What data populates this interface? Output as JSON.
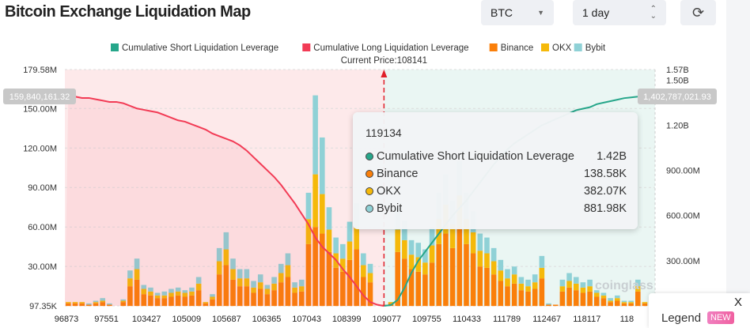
{
  "header": {
    "title": "Bitcoin Exchange Liquidation Map",
    "coin_select": "BTC",
    "range_select": "1 day",
    "refresh_icon": "refresh-icon"
  },
  "colors": {
    "short": "#26a68a",
    "long": "#f23b55",
    "binance": "#fa7f0a",
    "okx": "#f5b90a",
    "bybit": "#8fd1d6"
  },
  "chart_data": {
    "type": "bar",
    "legend": [
      "Cumulative Short Liquidation Leverage",
      "Cumulative Long Liquidation Leverage",
      "Binance",
      "OKX",
      "Bybit"
    ],
    "legend_placement": "top",
    "current_price_label": "Current Price:108141",
    "left_axis": {
      "ticks": [
        "179.58M",
        "150.00M",
        "120.00M",
        "90.00M",
        "60.00M",
        "30.00M",
        "97.35K"
      ],
      "ylim_m": [
        0.09735,
        179.58
      ]
    },
    "right_axis": {
      "ticks": [
        "1.57B",
        "1.50B",
        "1.20B",
        "900.00M",
        "600.00M",
        "300.00M"
      ],
      "ylim_m": [
        0,
        1570
      ]
    },
    "left_marker": "159,840,161.32",
    "right_marker": "1,402,787,021.93",
    "x_ticks": [
      "96873",
      "97551",
      "103427",
      "105009",
      "105687",
      "106365",
      "107043",
      "108399",
      "109077",
      "109755",
      "110433",
      "111789",
      "112467",
      "118117",
      "118"
    ],
    "binance_m": [
      2,
      2,
      2,
      1,
      2,
      3,
      1,
      0,
      3,
      15,
      20,
      9,
      8,
      6,
      6,
      7,
      8,
      7,
      8,
      12,
      2,
      5,
      24,
      31,
      20,
      15,
      15,
      10,
      13,
      9,
      12,
      18,
      22,
      10,
      11,
      47,
      60,
      55,
      41,
      29,
      26,
      35,
      43,
      22,
      18,
      0,
      1,
      2,
      41,
      36,
      28,
      26,
      24,
      33,
      47,
      55,
      44,
      60,
      47,
      40,
      30,
      29,
      24,
      19,
      15,
      17,
      12,
      11,
      13,
      21,
      1,
      1,
      11,
      14,
      12,
      10,
      11,
      7,
      6,
      3,
      4,
      2,
      2,
      11,
      2,
      2
    ],
    "okx_m": [
      1,
      1,
      1,
      0,
      1,
      1,
      0,
      0,
      1,
      6,
      8,
      4,
      3,
      2,
      2,
      3,
      3,
      3,
      3,
      5,
      1,
      2,
      10,
      12,
      8,
      6,
      6,
      4,
      5,
      4,
      5,
      7,
      9,
      4,
      4,
      19,
      40,
      30,
      17,
      11,
      10,
      14,
      17,
      9,
      7,
      0,
      0,
      1,
      17,
      14,
      11,
      11,
      9,
      13,
      19,
      22,
      18,
      24,
      19,
      16,
      12,
      11,
      10,
      8,
      6,
      7,
      5,
      4,
      5,
      8,
      0,
      0,
      4,
      5,
      5,
      4,
      4,
      3,
      2,
      1,
      2,
      1,
      1,
      4,
      1,
      1
    ],
    "bybit_m": [
      0,
      0,
      0,
      1,
      1,
      2,
      1,
      0,
      1,
      6,
      8,
      3,
      3,
      2,
      3,
      3,
      3,
      2,
      3,
      5,
      0,
      2,
      10,
      13,
      8,
      7,
      7,
      5,
      6,
      3,
      5,
      7,
      9,
      4,
      5,
      20,
      60,
      43,
      17,
      12,
      11,
      15,
      18,
      9,
      7,
      0,
      0,
      0,
      17,
      15,
      11,
      11,
      10,
      14,
      20,
      23,
      18,
      26,
      20,
      16,
      13,
      12,
      10,
      8,
      7,
      6,
      5,
      5,
      6,
      9,
      1,
      0,
      5,
      6,
      5,
      4,
      5,
      2,
      2,
      2,
      2,
      1,
      1,
      5,
      0,
      0
    ],
    "long_cumulative_m": [
      160,
      159,
      158,
      158,
      157,
      156,
      155,
      155,
      154,
      152,
      150,
      149,
      148,
      147,
      145,
      143,
      141,
      140,
      138,
      136,
      134,
      131,
      129,
      127,
      125,
      122,
      118,
      113,
      108,
      103,
      98,
      92,
      85,
      78,
      70,
      62,
      52,
      45,
      40,
      35,
      28,
      22,
      15,
      8,
      3,
      1,
      0
    ],
    "short_cumulative_m": [
      null,
      null,
      null,
      null,
      null,
      null,
      null,
      null,
      null,
      null,
      null,
      null,
      null,
      null,
      null,
      null,
      null,
      null,
      null,
      null,
      null,
      null,
      null,
      null,
      null,
      null,
      null,
      null,
      null,
      null,
      null,
      null,
      null,
      null,
      null,
      null,
      null,
      null,
      null,
      null,
      null,
      null,
      null,
      null,
      null,
      null,
      0,
      5,
      40,
      120,
      220,
      300,
      360,
      420,
      480,
      540,
      600,
      650,
      700,
      760,
      820,
      880,
      940,
      990,
      1040,
      1080,
      1110,
      1140,
      1170,
      1200,
      1220,
      1240,
      1260,
      1280,
      1300,
      1310,
      1320,
      1340,
      1350,
      1360,
      1370,
      1380,
      1385,
      1390,
      1398,
      1403
    ],
    "current_price_index": 46
  },
  "tooltip": {
    "price": "119134",
    "rows": [
      {
        "label": "Cumulative Short Liquidation Leverage",
        "value": "1.42B",
        "color": "#26a68a"
      },
      {
        "label": "Binance",
        "value": "138.58K",
        "color": "#fa7f0a"
      },
      {
        "label": "OKX",
        "value": "382.07K",
        "color": "#f5b90a"
      },
      {
        "label": "Bybit",
        "value": "881.98K",
        "color": "#8fd1d6"
      }
    ]
  },
  "watermark": "coinglass",
  "legend_button": {
    "label": "Legend",
    "badge": "NEW",
    "close": "X"
  }
}
